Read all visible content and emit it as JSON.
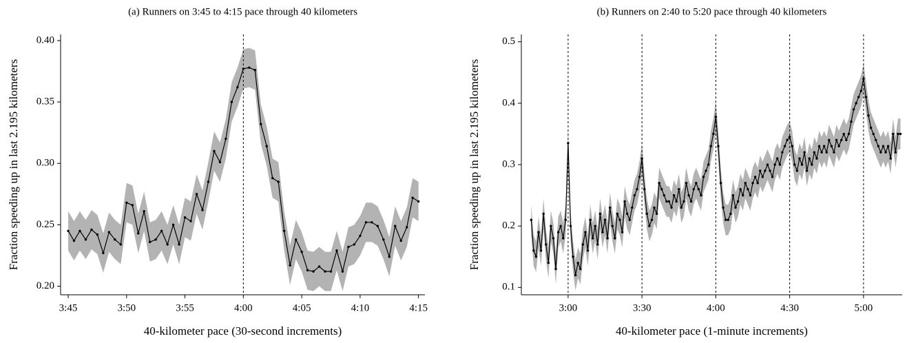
{
  "chart_data": [
    {
      "type": "line",
      "title": "(a) Runners on 3:45 to 4:15 pace through 40 kilometers",
      "x_label": "40-kilometer pace (30-second increments)",
      "y_label": "Fraction speeding up in last 2.195 kilometers",
      "x": [
        225,
        225.5,
        226,
        226.5,
        227,
        227.5,
        228,
        228.5,
        229,
        229.5,
        230,
        230.5,
        231,
        231.5,
        232,
        232.5,
        233,
        233.5,
        234,
        234.5,
        235,
        235.5,
        236,
        236.5,
        237,
        237.5,
        238,
        238.5,
        239,
        239.5,
        240,
        240.5,
        241,
        241.5,
        242,
        242.5,
        243,
        243.5,
        244,
        244.5,
        245,
        245.5,
        246,
        246.5,
        247,
        247.5,
        248,
        248.5,
        249,
        249.5,
        250,
        250.5,
        251,
        251.5,
        252,
        252.5,
        253,
        253.5,
        254,
        254.5,
        255
      ],
      "values": [
        0.245,
        0.237,
        0.245,
        0.238,
        0.246,
        0.242,
        0.227,
        0.244,
        0.238,
        0.234,
        0.268,
        0.266,
        0.243,
        0.261,
        0.236,
        0.238,
        0.245,
        0.234,
        0.25,
        0.234,
        0.256,
        0.253,
        0.275,
        0.262,
        0.285,
        0.31,
        0.301,
        0.32,
        0.35,
        0.362,
        0.377,
        0.378,
        0.376,
        0.332,
        0.314,
        0.288,
        0.285,
        0.245,
        0.217,
        0.238,
        0.228,
        0.213,
        0.212,
        0.216,
        0.212,
        0.212,
        0.229,
        0.212,
        0.232,
        0.234,
        0.241,
        0.252,
        0.252,
        0.249,
        0.238,
        0.224,
        0.249,
        0.237,
        0.248,
        0.272,
        0.269
      ],
      "error": 0.016,
      "color": "#000000",
      "band_color": "#b3b3b3",
      "vlines": [
        240
      ],
      "xlim": [
        224.35,
        255.55
      ],
      "ylim": [
        0.193,
        0.405
      ],
      "xticks": [
        {
          "value": 225,
          "label": "3:45"
        },
        {
          "value": 230,
          "label": "3:50"
        },
        {
          "value": 235,
          "label": "3:55"
        },
        {
          "value": 240,
          "label": "4:00"
        },
        {
          "value": 245,
          "label": "4:05"
        },
        {
          "value": 250,
          "label": "4:10"
        },
        {
          "value": 255,
          "label": "4:15"
        }
      ],
      "yticks": [
        {
          "value": 0.2,
          "label": "0.20"
        },
        {
          "value": 0.25,
          "label": "0.25"
        },
        {
          "value": 0.3,
          "label": "0.30"
        },
        {
          "value": 0.35,
          "label": "0.35"
        },
        {
          "value": 0.4,
          "label": "0.40"
        }
      ]
    },
    {
      "type": "line",
      "title": "(b) Runners on 2:40 to 5:20 pace through 40 kilometers",
      "x_label": "40-kilometer pace (1-minute increments)",
      "y_label": "Fraction speeding up in last 2.195 kilometers",
      "x": [
        165,
        166,
        167,
        168,
        169,
        170,
        171,
        172,
        173,
        174,
        175,
        176,
        177,
        178,
        179,
        180,
        181,
        182,
        183,
        184,
        185,
        186,
        187,
        188,
        189,
        190,
        191,
        192,
        193,
        194,
        195,
        196,
        197,
        198,
        199,
        200,
        201,
        202,
        203,
        204,
        205,
        206,
        207,
        208,
        209,
        210,
        211,
        212,
        213,
        214,
        215,
        216,
        217,
        218,
        219,
        220,
        221,
        222,
        223,
        224,
        225,
        226,
        227,
        228,
        229,
        230,
        231,
        232,
        233,
        234,
        235,
        236,
        237,
        238,
        239,
        240,
        241,
        242,
        243,
        244,
        245,
        246,
        247,
        248,
        249,
        250,
        251,
        252,
        253,
        254,
        255,
        256,
        257,
        258,
        259,
        260,
        261,
        262,
        263,
        264,
        265,
        266,
        267,
        268,
        269,
        270,
        271,
        272,
        273,
        274,
        275,
        276,
        277,
        278,
        279,
        280,
        281,
        282,
        283,
        284,
        285,
        286,
        287,
        288,
        289,
        290,
        291,
        292,
        293,
        294,
        295,
        296,
        297,
        298,
        299,
        300,
        301,
        302,
        303,
        304,
        305,
        306,
        307,
        308,
        309,
        310,
        311,
        312,
        313,
        314,
        315
      ],
      "values": [
        0.21,
        0.16,
        0.15,
        0.19,
        0.16,
        0.22,
        0.17,
        0.14,
        0.2,
        0.18,
        0.13,
        0.19,
        0.2,
        0.18,
        0.21,
        0.335,
        0.2,
        0.15,
        0.12,
        0.14,
        0.13,
        0.17,
        0.19,
        0.16,
        0.21,
        0.18,
        0.2,
        0.17,
        0.22,
        0.19,
        0.21,
        0.18,
        0.23,
        0.2,
        0.18,
        0.22,
        0.21,
        0.19,
        0.24,
        0.22,
        0.21,
        0.23,
        0.25,
        0.26,
        0.28,
        0.31,
        0.26,
        0.22,
        0.2,
        0.21,
        0.23,
        0.22,
        0.27,
        0.26,
        0.25,
        0.24,
        0.24,
        0.23,
        0.25,
        0.24,
        0.26,
        0.23,
        0.24,
        0.27,
        0.25,
        0.24,
        0.26,
        0.27,
        0.26,
        0.25,
        0.28,
        0.29,
        0.3,
        0.33,
        0.35,
        0.378,
        0.33,
        0.27,
        0.23,
        0.21,
        0.21,
        0.22,
        0.25,
        0.23,
        0.24,
        0.26,
        0.25,
        0.27,
        0.26,
        0.25,
        0.27,
        0.28,
        0.27,
        0.29,
        0.28,
        0.29,
        0.3,
        0.29,
        0.28,
        0.3,
        0.31,
        0.3,
        0.32,
        0.33,
        0.34,
        0.345,
        0.33,
        0.3,
        0.29,
        0.31,
        0.3,
        0.32,
        0.29,
        0.31,
        0.3,
        0.32,
        0.31,
        0.33,
        0.32,
        0.33,
        0.32,
        0.34,
        0.33,
        0.32,
        0.34,
        0.33,
        0.34,
        0.35,
        0.34,
        0.35,
        0.37,
        0.39,
        0.4,
        0.41,
        0.42,
        0.44,
        0.41,
        0.38,
        0.36,
        0.35,
        0.34,
        0.33,
        0.32,
        0.33,
        0.32,
        0.33,
        0.31,
        0.35,
        0.32,
        0.35,
        0.35
      ],
      "error": 0.025,
      "color": "#000000",
      "band_color": "#b3b3b3",
      "vlines": [
        180,
        210,
        240,
        270,
        300
      ],
      "xlim": [
        161,
        315.7
      ],
      "ylim": [
        0.088,
        0.512
      ],
      "xticks": [
        {
          "value": 180,
          "label": "3:00"
        },
        {
          "value": 210,
          "label": "3:30"
        },
        {
          "value": 240,
          "label": "4:00"
        },
        {
          "value": 270,
          "label": "4:30"
        },
        {
          "value": 300,
          "label": "5:00"
        }
      ],
      "yticks": [
        0.1,
        0.2,
        0.3,
        0.4,
        0.5
      ]
    }
  ]
}
